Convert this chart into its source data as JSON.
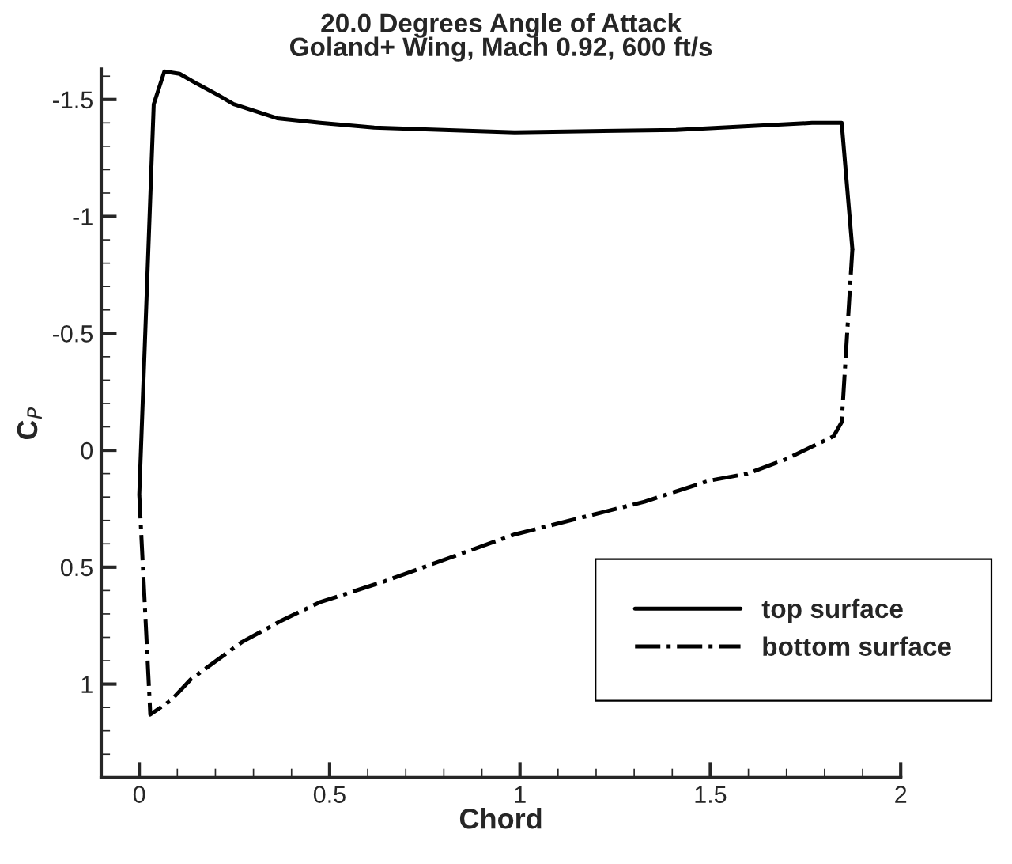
{
  "chart_data": {
    "type": "line",
    "title": "20.0 Degrees Angle of Attack\nGoland+ Wing, Mach 0.92, 600 ft/s",
    "xlabel": "Chord",
    "ylabel": "C$_{P}$",
    "xlim": [
      -0.1,
      2
    ],
    "ylim": [
      1.4,
      -1.63
    ],
    "xticks": [
      0,
      0.5,
      1,
      1.5,
      2
    ],
    "yticks": [
      -1.5,
      -1,
      -0.5,
      0,
      0.5,
      1
    ],
    "grid": false,
    "legend": "bottom right",
    "marker": "none",
    "series": [
      {
        "name": "top surface",
        "color": "#000000",
        "line_style": "solid",
        "x": [
          0,
          0.038,
          0.066,
          0.106,
          0.149,
          0.206,
          0.248,
          0.362,
          0.475,
          0.617,
          0.986,
          1.41,
          1.767,
          1.845,
          1.873
        ],
        "values": [
          0.19,
          -1.48,
          -1.62,
          -1.61,
          -1.57,
          -1.52,
          -1.48,
          -1.42,
          -1.4,
          -1.38,
          -1.36,
          -1.37,
          -1.4,
          -1.4,
          -0.86
        ]
      },
      {
        "name": "bottom surface",
        "color": "#000000",
        "line_style": "dashdot",
        "x": [
          1.873,
          1.845,
          1.824,
          1.696,
          1.597,
          1.497,
          1.327,
          0.986,
          0.815,
          0.645,
          0.474,
          0.372,
          0.27,
          0.135,
          0.083,
          0.029,
          0
        ],
        "values": [
          -0.86,
          -0.12,
          -0.06,
          0.04,
          0.1,
          0.13,
          0.22,
          0.36,
          0.46,
          0.56,
          0.65,
          0.73,
          0.82,
          0.98,
          1.07,
          1.13,
          0.19
        ]
      }
    ]
  }
}
